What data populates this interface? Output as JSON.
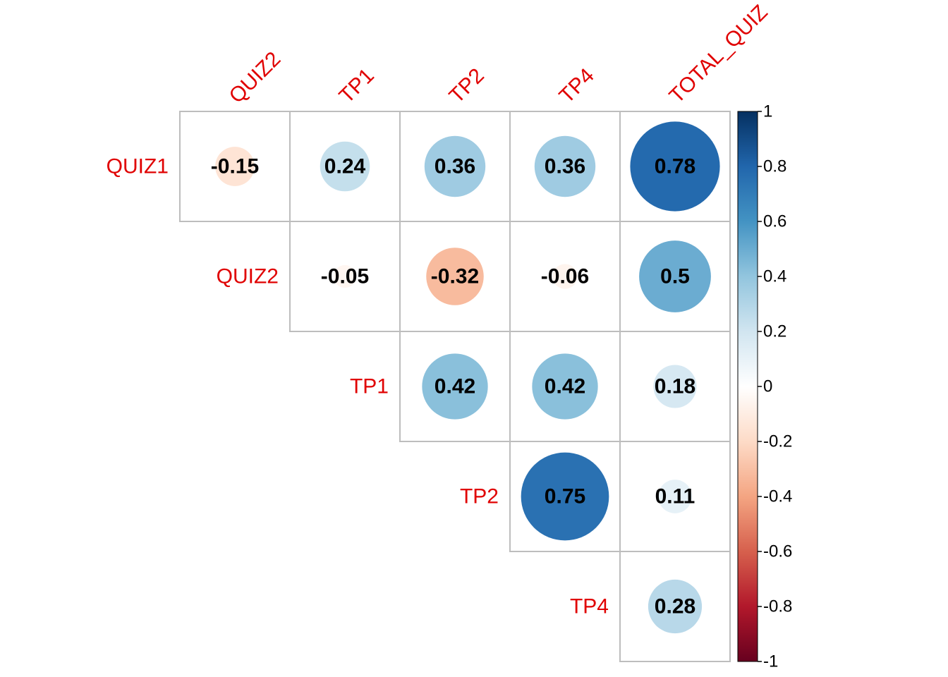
{
  "chart_data": {
    "type": "heatmap",
    "style": "correlation-circles-upper-triangle",
    "row_labels": [
      "QUIZ1",
      "QUIZ2",
      "TP1",
      "TP2",
      "TP4"
    ],
    "col_labels": [
      "QUIZ2",
      "TP1",
      "TP2",
      "TP4",
      "TOTAL_QUIZ"
    ],
    "cells": [
      {
        "row": "QUIZ1",
        "col": "QUIZ2",
        "value": -0.15,
        "label": "-0.15"
      },
      {
        "row": "QUIZ1",
        "col": "TP1",
        "value": 0.24,
        "label": "0.24"
      },
      {
        "row": "QUIZ1",
        "col": "TP2",
        "value": 0.36,
        "label": "0.36"
      },
      {
        "row": "QUIZ1",
        "col": "TP4",
        "value": 0.36,
        "label": "0.36"
      },
      {
        "row": "QUIZ1",
        "col": "TOTAL_QUIZ",
        "value": 0.78,
        "label": "0.78"
      },
      {
        "row": "QUIZ2",
        "col": "TP1",
        "value": -0.05,
        "label": "-0.05"
      },
      {
        "row": "QUIZ2",
        "col": "TP2",
        "value": -0.32,
        "label": "-0.32"
      },
      {
        "row": "QUIZ2",
        "col": "TP4",
        "value": -0.06,
        "label": "-0.06"
      },
      {
        "row": "QUIZ2",
        "col": "TOTAL_QUIZ",
        "value": 0.5,
        "label": "0.5"
      },
      {
        "row": "TP1",
        "col": "TP2",
        "value": 0.42,
        "label": "0.42"
      },
      {
        "row": "TP1",
        "col": "TP4",
        "value": 0.42,
        "label": "0.42"
      },
      {
        "row": "TP1",
        "col": "TOTAL_QUIZ",
        "value": 0.18,
        "label": "0.18"
      },
      {
        "row": "TP2",
        "col": "TP4",
        "value": 0.75,
        "label": "0.75"
      },
      {
        "row": "TP2",
        "col": "TOTAL_QUIZ",
        "value": 0.11,
        "label": "0.11"
      },
      {
        "row": "TP4",
        "col": "TOTAL_QUIZ",
        "value": 0.28,
        "label": "0.28"
      }
    ],
    "colorbar": {
      "range": [
        -1,
        1
      ],
      "ticks": [
        "1",
        "0.8",
        "0.6",
        "0.4",
        "0.2",
        "0",
        "-0.2",
        "-0.4",
        "-0.6",
        "-0.8",
        "-1"
      ],
      "colors": [
        "#67001F",
        "#B2182B",
        "#D6604D",
        "#F4A582",
        "#FDDBC7",
        "#FFFFFF",
        "#D1E5F0",
        "#92C5DE",
        "#4393C3",
        "#2166AC",
        "#053061"
      ]
    },
    "label_color": "#E00000",
    "value_label_color": "#000000",
    "grid": true
  }
}
